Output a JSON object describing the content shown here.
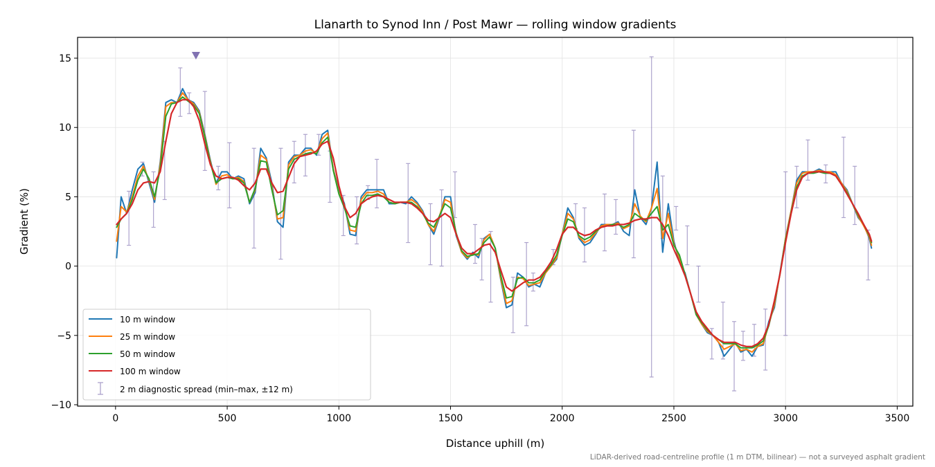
{
  "chart_data": {
    "type": "line",
    "title": "Llanarth to Synod Inn / Post Mawr — rolling window gradients",
    "xlabel": "Distance uphill (m)",
    "ylabel": "Gradient (%)",
    "xlim": [
      -170,
      3570
    ],
    "ylim": [
      -10.1,
      16.5
    ],
    "xticks": [
      0,
      500,
      1000,
      1500,
      2000,
      2500,
      3000,
      3500
    ],
    "xtick_labels": [
      "0",
      "500",
      "1000",
      "1500",
      "2000",
      "2500",
      "3000",
      "3500"
    ],
    "yticks": [
      -10,
      -5,
      0,
      5,
      10,
      15
    ],
    "ytick_labels": [
      "−10",
      "−5",
      "0",
      "5",
      "10",
      "15"
    ],
    "grid": true,
    "legend_position": "lower-left",
    "footnote": "LiDAR-derived road-centreline profile (1 m DTM, bilinear) — not a surveyed asphalt gradient",
    "marker": {
      "x": 360,
      "y": 15.2,
      "color": "#8172b2"
    },
    "x": [
      5,
      25,
      50,
      75,
      100,
      125,
      150,
      175,
      200,
      225,
      250,
      275,
      300,
      325,
      350,
      375,
      400,
      425,
      450,
      475,
      500,
      525,
      550,
      575,
      600,
      625,
      650,
      675,
      700,
      725,
      750,
      775,
      800,
      825,
      850,
      875,
      900,
      925,
      950,
      975,
      1000,
      1025,
      1050,
      1075,
      1100,
      1125,
      1150,
      1175,
      1200,
      1225,
      1250,
      1275,
      1300,
      1325,
      1350,
      1375,
      1400,
      1425,
      1450,
      1475,
      1500,
      1525,
      1550,
      1575,
      1600,
      1625,
      1650,
      1675,
      1700,
      1725,
      1750,
      1775,
      1800,
      1825,
      1850,
      1875,
      1900,
      1925,
      1950,
      1975,
      2000,
      2025,
      2050,
      2075,
      2100,
      2125,
      2150,
      2175,
      2200,
      2225,
      2250,
      2275,
      2300,
      2325,
      2350,
      2375,
      2400,
      2425,
      2450,
      2475,
      2500,
      2525,
      2550,
      2575,
      2600,
      2625,
      2650,
      2675,
      2700,
      2725,
      2750,
      2775,
      2800,
      2825,
      2850,
      2875,
      2900,
      2925,
      2950,
      2975,
      3000,
      3025,
      3050,
      3075,
      3100,
      3125,
      3150,
      3175,
      3200,
      3225,
      3250,
      3275,
      3300,
      3325,
      3350,
      3375,
      3385
    ],
    "series": [
      {
        "name": "10 m window",
        "color": "#1f77b4",
        "width": 2.0,
        "values": [
          0.6,
          5.0,
          3.8,
          5.5,
          7.0,
          7.4,
          6.0,
          4.6,
          7.5,
          11.8,
          12.0,
          11.8,
          12.8,
          12.0,
          11.8,
          11.2,
          9.5,
          7.6,
          6.0,
          6.8,
          6.8,
          6.3,
          6.5,
          6.3,
          4.5,
          5.3,
          8.5,
          7.8,
          6.0,
          3.2,
          2.8,
          7.5,
          8.0,
          8.0,
          8.5,
          8.5,
          8.0,
          9.5,
          9.8,
          7.0,
          5.5,
          4.5,
          2.3,
          2.2,
          5.0,
          5.5,
          5.5,
          5.5,
          5.5,
          4.5,
          4.5,
          4.6,
          4.5,
          5.0,
          4.6,
          4.0,
          3.0,
          2.3,
          3.5,
          5.0,
          5.0,
          2.2,
          1.0,
          0.5,
          1.0,
          0.6,
          2.0,
          2.3,
          1.3,
          -1.0,
          -3.0,
          -2.8,
          -0.5,
          -0.8,
          -1.5,
          -1.3,
          -1.5,
          -0.5,
          0.0,
          0.5,
          2.3,
          4.2,
          3.5,
          2.0,
          1.5,
          1.7,
          2.3,
          3.0,
          3.0,
          3.0,
          3.2,
          2.5,
          2.2,
          5.5,
          3.5,
          3.0,
          4.2,
          7.5,
          1.0,
          4.5,
          1.8,
          0.3,
          -0.5,
          -2.0,
          -3.5,
          -4.2,
          -4.8,
          -5.0,
          -5.5,
          -6.5,
          -6.0,
          -5.5,
          -6.2,
          -6.0,
          -6.5,
          -5.8,
          -5.7,
          -4.0,
          -3.0,
          -0.5,
          2.0,
          4.0,
          6.2,
          6.8,
          6.8,
          6.8,
          7.0,
          6.8,
          6.8,
          6.8,
          6.0,
          5.5,
          4.5,
          3.5,
          3.0,
          2.0,
          1.3
        ]
      },
      {
        "name": "25 m window",
        "color": "#ff7f0e",
        "width": 2.0,
        "values": [
          1.8,
          4.3,
          3.9,
          5.0,
          6.5,
          7.2,
          6.2,
          4.8,
          7.3,
          11.5,
          11.8,
          11.8,
          12.5,
          12.0,
          11.7,
          11.1,
          9.4,
          7.5,
          5.9,
          6.5,
          6.6,
          6.3,
          6.4,
          6.1,
          4.6,
          5.5,
          8.0,
          7.7,
          5.7,
          3.4,
          3.5,
          7.3,
          7.9,
          8.0,
          8.3,
          8.4,
          8.1,
          9.2,
          9.6,
          7.0,
          5.3,
          4.4,
          2.6,
          2.5,
          4.8,
          5.3,
          5.3,
          5.4,
          5.2,
          4.6,
          4.5,
          4.6,
          4.6,
          4.8,
          4.5,
          3.9,
          3.0,
          2.5,
          3.6,
          4.8,
          4.6,
          2.3,
          1.0,
          0.6,
          0.9,
          0.8,
          1.9,
          2.3,
          1.3,
          -0.9,
          -2.7,
          -2.5,
          -0.8,
          -0.9,
          -1.4,
          -1.3,
          -1.2,
          -0.5,
          0.0,
          0.6,
          2.3,
          3.8,
          3.4,
          2.1,
          1.7,
          1.9,
          2.4,
          2.9,
          3.0,
          3.0,
          3.1,
          2.7,
          2.9,
          4.5,
          3.6,
          3.2,
          4.2,
          5.6,
          2.0,
          3.8,
          1.6,
          0.6,
          -0.6,
          -2.0,
          -3.5,
          -4.2,
          -4.7,
          -5.0,
          -5.5,
          -6.0,
          -5.8,
          -5.6,
          -6.1,
          -6.0,
          -6.2,
          -5.8,
          -5.6,
          -4.2,
          -2.8,
          -0.6,
          2.0,
          4.0,
          6.0,
          6.7,
          6.8,
          6.8,
          6.9,
          6.8,
          6.8,
          6.6,
          6.0,
          5.4,
          4.5,
          3.6,
          2.9,
          2.1,
          1.5
        ]
      },
      {
        "name": "50 m window",
        "color": "#2ca02c",
        "width": 2.0,
        "values": [
          2.8,
          3.4,
          3.8,
          4.8,
          6.2,
          7.0,
          6.3,
          5.0,
          7.0,
          10.8,
          11.7,
          11.8,
          12.2,
          11.9,
          11.6,
          11.0,
          9.3,
          7.4,
          6.0,
          6.3,
          6.4,
          6.3,
          6.3,
          6.0,
          4.6,
          5.6,
          7.6,
          7.5,
          5.5,
          3.7,
          4.0,
          7.0,
          7.7,
          7.9,
          8.1,
          8.2,
          8.1,
          8.9,
          9.3,
          6.9,
          5.2,
          4.2,
          2.9,
          2.8,
          4.5,
          5.1,
          5.1,
          5.2,
          5.0,
          4.6,
          4.5,
          4.6,
          4.6,
          4.6,
          4.3,
          3.8,
          3.1,
          2.8,
          3.6,
          4.5,
          4.2,
          2.4,
          1.1,
          0.7,
          0.8,
          0.9,
          1.7,
          2.1,
          1.3,
          -0.7,
          -2.3,
          -2.2,
          -0.9,
          -0.8,
          -1.2,
          -1.2,
          -1.0,
          -0.4,
          0.1,
          0.8,
          2.2,
          3.4,
          3.2,
          2.2,
          1.9,
          2.1,
          2.5,
          2.8,
          2.9,
          3.0,
          3.0,
          2.8,
          3.0,
          3.8,
          3.5,
          3.3,
          3.8,
          4.3,
          2.6,
          3.0,
          1.5,
          0.8,
          -0.6,
          -2.0,
          -3.5,
          -4.1,
          -4.6,
          -5.0,
          -5.3,
          -5.6,
          -5.6,
          -5.6,
          -5.9,
          -5.9,
          -5.9,
          -5.7,
          -5.4,
          -4.3,
          -2.6,
          -0.6,
          1.9,
          3.9,
          5.7,
          6.5,
          6.7,
          6.7,
          6.8,
          6.7,
          6.7,
          6.5,
          5.9,
          5.3,
          4.5,
          3.7,
          3.0,
          2.2,
          1.7
        ]
      },
      {
        "name": "100 m window",
        "color": "#d62728",
        "width": 2.2,
        "values": [
          3.0,
          3.4,
          3.8,
          4.5,
          5.5,
          6.0,
          6.1,
          6.0,
          6.8,
          9.0,
          11.0,
          11.8,
          12.0,
          12.0,
          11.5,
          10.5,
          8.8,
          7.3,
          6.5,
          6.3,
          6.4,
          6.4,
          6.2,
          5.8,
          5.5,
          6.0,
          7.0,
          7.0,
          6.0,
          5.3,
          5.4,
          6.4,
          7.4,
          7.9,
          8.0,
          8.1,
          8.3,
          8.8,
          9.0,
          7.8,
          5.8,
          4.3,
          3.5,
          3.8,
          4.5,
          4.8,
          5.0,
          5.1,
          5.0,
          4.8,
          4.6,
          4.6,
          4.6,
          4.5,
          4.2,
          3.8,
          3.3,
          3.2,
          3.5,
          3.8,
          3.5,
          2.3,
          1.3,
          0.9,
          0.9,
          1.2,
          1.5,
          1.6,
          1.0,
          -0.3,
          -1.5,
          -1.8,
          -1.5,
          -1.2,
          -1.0,
          -1.0,
          -0.8,
          -0.3,
          0.3,
          1.2,
          2.3,
          2.8,
          2.8,
          2.4,
          2.2,
          2.3,
          2.6,
          2.8,
          2.9,
          2.9,
          3.0,
          3.0,
          3.1,
          3.3,
          3.4,
          3.4,
          3.5,
          3.5,
          3.0,
          2.2,
          1.2,
          0.3,
          -0.7,
          -2.0,
          -3.3,
          -4.0,
          -4.5,
          -5.0,
          -5.3,
          -5.5,
          -5.5,
          -5.5,
          -5.7,
          -5.8,
          -5.8,
          -5.6,
          -5.2,
          -4.2,
          -2.5,
          -0.6,
          1.7,
          3.8,
          5.5,
          6.4,
          6.7,
          6.8,
          6.8,
          6.8,
          6.7,
          6.5,
          5.9,
          5.2,
          4.5,
          3.8,
          3.0,
          2.3,
          1.8
        ]
      }
    ],
    "errorbars": {
      "name": "2 m diagnostic spread (min–max, ±12 m)",
      "color": "#8172b2",
      "x": [
        60,
        120,
        170,
        220,
        290,
        330,
        400,
        460,
        510,
        620,
        740,
        800,
        850,
        910,
        960,
        1020,
        1080,
        1130,
        1170,
        1310,
        1410,
        1460,
        1520,
        1610,
        1640,
        1680,
        1780,
        1840,
        1870,
        1960,
        2060,
        2100,
        2190,
        2240,
        2320,
        2400,
        2450,
        2510,
        2560,
        2610,
        2670,
        2720,
        2770,
        2810,
        2860,
        2910,
        3000,
        3050,
        3100,
        3180,
        3260,
        3310,
        3370
      ],
      "low": [
        1.5,
        6.5,
        2.8,
        4.8,
        10.8,
        11.0,
        6.9,
        5.5,
        4.2,
        1.3,
        0.5,
        6.0,
        6.5,
        8.0,
        4.6,
        2.2,
        1.6,
        4.8,
        4.2,
        1.7,
        0.1,
        0.0,
        3.5,
        0.2,
        -1.0,
        -2.6,
        -4.8,
        -4.3,
        -1.8,
        0.1,
        2.7,
        0.3,
        1.1,
        2.3,
        0.6,
        -8.0,
        2.0,
        2.6,
        0.1,
        -2.6,
        -6.7,
        -6.7,
        -9.0,
        -6.8,
        -6.5,
        -7.5,
        -5.0,
        4.2,
        6.2,
        6.0,
        3.5,
        3.0,
        -1.0
      ],
      "high": [
        5.4,
        7.5,
        6.8,
        9.0,
        14.3,
        12.5,
        12.6,
        7.2,
        8.9,
        8.5,
        8.5,
        9.0,
        9.5,
        9.5,
        8.3,
        5.1,
        5.0,
        5.8,
        7.7,
        7.4,
        4.5,
        5.5,
        6.8,
        3.0,
        2.0,
        2.5,
        -0.8,
        1.7,
        -0.5,
        1.2,
        4.5,
        4.2,
        5.2,
        4.8,
        9.8,
        15.1,
        6.5,
        4.3,
        2.9,
        0.0,
        -4.5,
        -2.6,
        -4.0,
        -4.7,
        -4.2,
        -3.1,
        6.8,
        7.2,
        9.1,
        7.3,
        9.3,
        7.2,
        2.6
      ]
    }
  }
}
